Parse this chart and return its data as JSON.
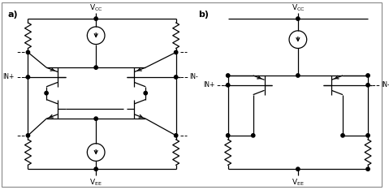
{
  "fig_bg": "#ffffff",
  "line_color": "#000000",
  "title_a": "a)",
  "title_b": "b)",
  "label_inp": "IN+",
  "label_inn": "IN-",
  "border_color": "#888888"
}
